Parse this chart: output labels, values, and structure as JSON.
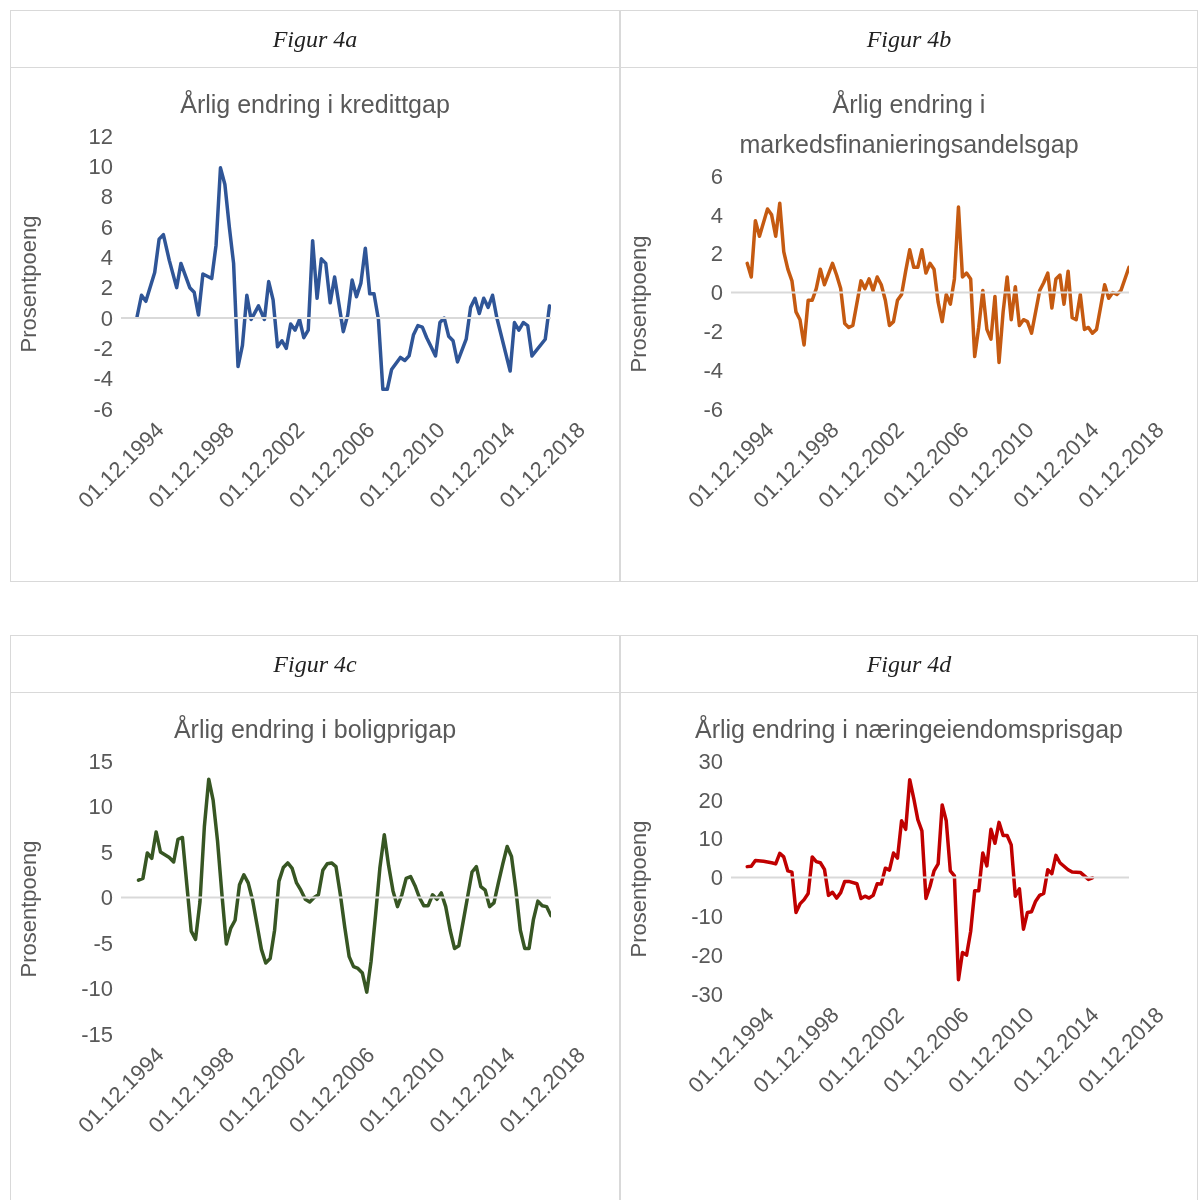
{
  "chart_data": [
    {
      "type": "line",
      "title": "Figur 4a",
      "subtitle": "Årlig endring i kredittgap",
      "ylabel": "Prosentpoeng",
      "x": [
        "1995-11",
        "1996-02",
        "1996-05",
        "1996-11",
        "1997-02",
        "1997-05",
        "1997-09",
        "1998-02",
        "1998-05",
        "1998-11",
        "1999-02",
        "1999-05",
        "1999-08",
        "2000-02",
        "2000-05",
        "2000-08",
        "2000-11",
        "2001-02",
        "2001-05",
        "2001-08",
        "2001-11",
        "2002-02",
        "2002-05",
        "2002-10",
        "2003-02",
        "2003-05",
        "2003-08",
        "2003-11",
        "2004-02",
        "2004-05",
        "2004-08",
        "2004-11",
        "2005-02",
        "2005-05",
        "2005-08",
        "2005-11",
        "2006-02",
        "2006-05",
        "2006-08",
        "2006-11",
        "2007-02",
        "2007-08",
        "2007-11",
        "2008-02",
        "2008-05",
        "2008-08",
        "2008-11",
        "2009-02",
        "2009-05",
        "2009-08",
        "2009-11",
        "2010-02",
        "2010-05",
        "2010-11",
        "2011-02",
        "2011-05",
        "2011-08",
        "2011-11",
        "2012-02",
        "2012-05",
        "2012-08",
        "2012-11",
        "2013-02",
        "2013-05",
        "2013-08",
        "2013-11",
        "2014-02",
        "2014-08",
        "2014-11",
        "2015-02",
        "2015-05",
        "2015-08",
        "2015-11",
        "2016-02",
        "2016-05",
        "2017-02",
        "2017-05",
        "2017-08",
        "2017-11",
        "2018-02",
        "2018-05",
        "2019-02",
        "2019-05"
      ],
      "series": [
        {
          "color": "#2f5597",
          "values": [
            0.1,
            1.5,
            1.1,
            3.0,
            5.2,
            5.5,
            3.8,
            2.0,
            3.6,
            2.0,
            1.7,
            0.2,
            2.9,
            2.6,
            4.8,
            9.9,
            8.8,
            6.0,
            3.6,
            -3.2,
            -1.8,
            1.5,
            -0.1,
            0.8,
            -0.1,
            2.4,
            1.2,
            -1.9,
            -1.5,
            -2.0,
            -0.4,
            -0.8,
            -0.1,
            -1.3,
            -0.8,
            5.1,
            1.3,
            3.9,
            3.6,
            1.0,
            2.7,
            -0.9,
            0.2,
            2.5,
            1.4,
            2.3,
            4.6,
            1.6,
            1.6,
            -0.1,
            -4.7,
            -4.7,
            -3.4,
            -2.6,
            -2.8,
            -2.5,
            -1.1,
            -0.5,
            -0.6,
            -1.3,
            -1.9,
            -2.5,
            -0.3,
            0.0,
            -1.2,
            -1.5,
            -2.9,
            -1.4,
            0.7,
            1.3,
            0.3,
            1.3,
            0.7,
            1.5,
            0.0,
            -3.5,
            -0.3,
            -0.8,
            -0.3,
            -0.5,
            -2.5,
            -1.4,
            0.8
          ]
        }
      ],
      "xlim": [
        "1994-12-01",
        "2019-06-01"
      ],
      "xticks": [
        {
          "value": "1994-12-01",
          "label": "01.12.1994"
        },
        {
          "value": "1998-12-01",
          "label": "01.12.1998"
        },
        {
          "value": "2002-12-01",
          "label": "01.12.2002"
        },
        {
          "value": "2006-12-01",
          "label": "01.12.2006"
        },
        {
          "value": "2010-12-01",
          "label": "01.12.2010"
        },
        {
          "value": "2014-12-01",
          "label": "01.12.2014"
        },
        {
          "value": "2018-12-01",
          "label": "01.12.2018"
        }
      ],
      "ylim": [
        -6,
        12
      ],
      "yticks": [
        -6,
        -4,
        -2,
        0,
        2,
        4,
        6,
        8,
        10,
        12
      ]
    },
    {
      "type": "line",
      "title": "Figur 4b",
      "subtitle": "Årlig endring i markedsfinanieringsandelsgap",
      "ylabel": "Prosentpoeng",
      "x": [
        "1995-12",
        "1996-03",
        "1996-06",
        "1996-09",
        "1997-03",
        "1997-06",
        "1997-09",
        "1997-12",
        "1998-03",
        "1998-06",
        "1998-09",
        "1998-12",
        "1999-03",
        "1999-06",
        "1999-09",
        "1999-12",
        "2000-03",
        "2000-06",
        "2000-09",
        "2001-03",
        "2001-06",
        "2001-09",
        "2001-12",
        "2002-03",
        "2002-06",
        "2002-12",
        "2003-03",
        "2003-06",
        "2003-09",
        "2003-12",
        "2004-03",
        "2004-06",
        "2004-09",
        "2004-12",
        "2005-03",
        "2005-06",
        "2005-09",
        "2005-12",
        "2006-03",
        "2006-06",
        "2006-09",
        "2006-12",
        "2007-03",
        "2007-06",
        "2007-09",
        "2007-12",
        "2008-03",
        "2008-06",
        "2008-09",
        "2008-12",
        "2009-03",
        "2009-06",
        "2009-09",
        "2009-12",
        "2010-03",
        "2010-06",
        "2010-09",
        "2010-12",
        "2011-03",
        "2011-06",
        "2011-09",
        "2011-12",
        "2012-03",
        "2012-06",
        "2012-09",
        "2012-12",
        "2013-03",
        "2013-06",
        "2013-12",
        "2014-03",
        "2014-06",
        "2014-09",
        "2014-12",
        "2015-03",
        "2015-06",
        "2015-09",
        "2015-12",
        "2016-03",
        "2016-06",
        "2016-09",
        "2016-12",
        "2017-03",
        "2017-06",
        "2017-12",
        "2018-03",
        "2018-06",
        "2018-09",
        "2018-12",
        "2019-06"
      ],
      "series": [
        {
          "color": "#c55a11",
          "values": [
            1.5,
            0.8,
            3.7,
            2.9,
            4.3,
            4.0,
            2.9,
            4.6,
            2.1,
            1.2,
            0.6,
            -1.0,
            -1.4,
            -2.7,
            -0.4,
            -0.4,
            0.2,
            1.2,
            0.4,
            1.5,
            0.9,
            0.2,
            -1.6,
            -1.8,
            -1.7,
            0.6,
            0.2,
            0.7,
            0.1,
            0.8,
            0.4,
            -0.4,
            -1.7,
            -1.5,
            -0.4,
            -0.1,
            1.1,
            2.2,
            1.3,
            1.3,
            2.2,
            1.0,
            1.5,
            1.2,
            -0.5,
            -1.5,
            -0.1,
            -0.6,
            0.7,
            4.4,
            0.8,
            1.0,
            0.7,
            -3.3,
            -1.8,
            0.1,
            -1.9,
            -2.4,
            -0.2,
            -3.6,
            -1.0,
            0.8,
            -1.4,
            0.3,
            -1.7,
            -1.4,
            -1.5,
            -2.1,
            0.1,
            0.5,
            1.0,
            -0.8,
            0.7,
            0.9,
            -0.6,
            1.1,
            -1.3,
            -1.4,
            -0.1,
            -1.9,
            -1.8,
            -2.1,
            -1.9,
            0.4,
            -0.3,
            0.0,
            -0.1,
            0.1,
            1.3
          ]
        }
      ],
      "xlim": [
        "1994-12-01",
        "2019-06-01"
      ],
      "xticks": [
        {
          "value": "1994-12-01",
          "label": "01.12.1994"
        },
        {
          "value": "1998-12-01",
          "label": "01.12.1998"
        },
        {
          "value": "2002-12-01",
          "label": "01.12.2002"
        },
        {
          "value": "2006-12-01",
          "label": "01.12.2006"
        },
        {
          "value": "2010-12-01",
          "label": "01.12.2010"
        },
        {
          "value": "2014-12-01",
          "label": "01.12.2014"
        },
        {
          "value": "2018-12-01",
          "label": "01.12.2018"
        }
      ],
      "ylim": [
        -6,
        6
      ],
      "yticks": [
        -6,
        -4,
        -2,
        0,
        2,
        4,
        6
      ]
    },
    {
      "type": "line",
      "title": "Figur 4c",
      "subtitle": "Årlig endring i boligprigap",
      "ylabel": "Prosentpoeng",
      "x": [
        "1995-12",
        "1996-03",
        "1996-06",
        "1996-09",
        "1996-12",
        "1997-03",
        "1997-06",
        "1997-09",
        "1997-12",
        "1998-03",
        "1998-06",
        "1998-09",
        "1998-12",
        "1999-03",
        "1999-06",
        "1999-09",
        "1999-12",
        "2000-03",
        "2000-06",
        "2000-09",
        "2000-12",
        "2001-03",
        "2001-06",
        "2001-09",
        "2001-12",
        "2002-03",
        "2002-06",
        "2002-12",
        "2003-03",
        "2003-06",
        "2003-09",
        "2003-12",
        "2004-03",
        "2004-06",
        "2004-09",
        "2004-12",
        "2005-03",
        "2005-06",
        "2005-09",
        "2005-12",
        "2006-03",
        "2006-06",
        "2006-09",
        "2006-12",
        "2007-03",
        "2007-06",
        "2007-09",
        "2007-12",
        "2008-03",
        "2008-06",
        "2008-09",
        "2008-12",
        "2009-03",
        "2009-06",
        "2009-09",
        "2009-12",
        "2010-03",
        "2010-06",
        "2010-09",
        "2010-12",
        "2011-03",
        "2011-06",
        "2011-09",
        "2011-12",
        "2012-03",
        "2012-06",
        "2012-09",
        "2012-12",
        "2013-03",
        "2013-06",
        "2013-09",
        "2013-12",
        "2014-03",
        "2014-06",
        "2014-12",
        "2015-03",
        "2015-06",
        "2015-09",
        "2015-12",
        "2016-03",
        "2016-06",
        "2016-09",
        "2016-12",
        "2017-03",
        "2017-06",
        "2017-09",
        "2017-12",
        "2018-03",
        "2018-06",
        "2018-09",
        "2018-12",
        "2019-03",
        "2019-06"
      ],
      "series": [
        {
          "color": "#375623",
          "values": [
            1.9,
            2.1,
            4.9,
            4.3,
            7.2,
            5.0,
            4.7,
            4.4,
            3.9,
            6.4,
            6.6,
            1.4,
            -3.7,
            -4.6,
            -0.5,
            7.8,
            13.0,
            10.7,
            6.2,
            0.3,
            -5.1,
            -3.4,
            -2.5,
            1.4,
            2.5,
            1.6,
            -0.3,
            -5.7,
            -7.2,
            -6.7,
            -3.6,
            1.8,
            3.3,
            3.8,
            3.2,
            1.6,
            0.8,
            -0.2,
            -0.5,
            0.0,
            0.3,
            3.0,
            3.7,
            3.8,
            3.4,
            0.3,
            -3.3,
            -6.5,
            -7.6,
            -7.8,
            -8.3,
            -10.4,
            -7.0,
            -2.0,
            3.3,
            6.9,
            3.5,
            0.7,
            -1.0,
            0.3,
            2.1,
            2.3,
            1.3,
            0.0,
            -0.9,
            -0.9,
            0.3,
            -0.2,
            0.5,
            -1.0,
            -3.6,
            -5.6,
            -5.3,
            -2.6,
            2.8,
            3.4,
            1.2,
            0.8,
            -1.0,
            -0.6,
            1.6,
            3.7,
            5.6,
            4.5,
            0.8,
            -3.6,
            -5.6,
            -5.6,
            -2.4,
            -0.4,
            -0.9,
            -1.0,
            -2.0
          ]
        }
      ],
      "xlim": [
        "1994-12-01",
        "2019-06-01"
      ],
      "xticks": [
        {
          "value": "1994-12-01",
          "label": "01.12.1994"
        },
        {
          "value": "1998-12-01",
          "label": "01.12.1998"
        },
        {
          "value": "2002-12-01",
          "label": "01.12.2002"
        },
        {
          "value": "2006-12-01",
          "label": "01.12.2006"
        },
        {
          "value": "2010-12-01",
          "label": "01.12.2010"
        },
        {
          "value": "2014-12-01",
          "label": "01.12.2014"
        },
        {
          "value": "2018-12-01",
          "label": "01.12.2018"
        }
      ],
      "ylim": [
        -15,
        15
      ],
      "yticks": [
        -15,
        -10,
        -5,
        0,
        5,
        10,
        15
      ]
    },
    {
      "type": "line",
      "title": "Figur 4d",
      "subtitle": "Årlig endring i næringeiendomsprisgap",
      "ylabel": "Prosentpoeng",
      "x": [
        "1995-12",
        "1996-03",
        "1996-06",
        "1996-12",
        "1997-06",
        "1997-09",
        "1997-12",
        "1998-03",
        "1998-06",
        "1998-09",
        "1998-12",
        "1999-03",
        "1999-06",
        "1999-09",
        "1999-12",
        "2000-03",
        "2000-06",
        "2000-09",
        "2000-12",
        "2001-03",
        "2001-06",
        "2001-09",
        "2001-12",
        "2002-03",
        "2002-09",
        "2002-12",
        "2003-03",
        "2003-06",
        "2003-09",
        "2003-12",
        "2004-03",
        "2004-06",
        "2004-09",
        "2004-12",
        "2005-03",
        "2005-06",
        "2005-09",
        "2005-12",
        "2006-03",
        "2006-06",
        "2006-09",
        "2006-12",
        "2007-03",
        "2007-06",
        "2007-09",
        "2007-12",
        "2008-03",
        "2008-06",
        "2008-09",
        "2008-12",
        "2009-03",
        "2009-06",
        "2009-09",
        "2009-12",
        "2010-03",
        "2010-06",
        "2010-09",
        "2010-12",
        "2011-03",
        "2011-06",
        "2011-09",
        "2011-12",
        "2012-03",
        "2012-06",
        "2012-09",
        "2012-12",
        "2013-03",
        "2013-06",
        "2013-09",
        "2013-12",
        "2014-03",
        "2014-06",
        "2014-09",
        "2014-12",
        "2015-03",
        "2015-09",
        "2015-12",
        "2016-06",
        "2016-12",
        "2017-03"
      ],
      "series": [
        {
          "color": "#c00000",
          "values": [
            2.8,
            2.9,
            4.4,
            4.2,
            3.8,
            3.5,
            6.2,
            5.3,
            1.7,
            1.4,
            -9.0,
            -6.8,
            -5.7,
            -4.1,
            5.3,
            4.1,
            3.8,
            2.1,
            -4.6,
            -3.8,
            -5.3,
            -3.9,
            -1.0,
            -1.0,
            -1.6,
            -5.4,
            -4.8,
            -5.3,
            -4.6,
            -1.6,
            -1.7,
            2.4,
            1.9,
            6.3,
            5.0,
            14.6,
            12.4,
            25.2,
            20.4,
            14.9,
            12.0,
            -5.4,
            -2.3,
            1.7,
            3.5,
            18.7,
            14.6,
            1.7,
            0.4,
            -26.3,
            -19.3,
            -20.0,
            -13.9,
            -3.4,
            -3.4,
            6.3,
            3.0,
            12.4,
            8.8,
            14.2,
            10.8,
            10.8,
            8.4,
            -4.8,
            -2.9,
            -13.3,
            -9.0,
            -8.8,
            -6.1,
            -4.6,
            -4.1,
            2.0,
            1.0,
            5.7,
            3.8,
            2.0,
            1.4,
            1.3,
            -0.5,
            -0.1
          ]
        }
      ],
      "xlim": [
        "1994-12-01",
        "2019-06-01"
      ],
      "xticks": [
        {
          "value": "1994-12-01",
          "label": "01.12.1994"
        },
        {
          "value": "1998-12-01",
          "label": "01.12.1998"
        },
        {
          "value": "2002-12-01",
          "label": "01.12.2002"
        },
        {
          "value": "2006-12-01",
          "label": "01.12.2006"
        },
        {
          "value": "2010-12-01",
          "label": "01.12.2010"
        },
        {
          "value": "2014-12-01",
          "label": "01.12.2014"
        },
        {
          "value": "2018-12-01",
          "label": "01.12.2018"
        }
      ],
      "ylim": [
        -30,
        30
      ],
      "yticks": [
        -30,
        -20,
        -10,
        0,
        10,
        20,
        30
      ]
    }
  ]
}
